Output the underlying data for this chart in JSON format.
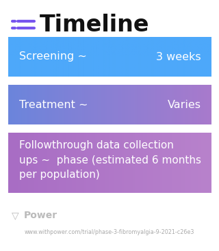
{
  "title": "Timeline",
  "title_fontsize": 24,
  "title_color": "#111111",
  "icon_color": "#7755EE",
  "background_color": "#ffffff",
  "boxes": [
    {
      "left_text": "Screening ~",
      "right_text": "3 weeks",
      "color_left": "#4DA8FA",
      "color_right": "#4DA8FA",
      "multiline": false,
      "fontsize": 11.5
    },
    {
      "left_text": "Treatment ~",
      "right_text": "Varies",
      "color_left": "#6B85DC",
      "color_right": "#A87ACC",
      "multiline": false,
      "fontsize": 11.5
    },
    {
      "left_text": "Followthrough data collection\nups ~  phase (estimated 6 months\nper population)",
      "right_text": "",
      "color_left": "#A86DC4",
      "color_right": "#B882CC",
      "multiline": true,
      "fontsize": 11
    }
  ],
  "footer_logo_text": "Power",
  "footer_url": "www.withpower.com/trial/phase-3-fibromyalgia-9-2021-c26e3",
  "footer_color": "#aaaaaa",
  "footer_fontsize": 5.8,
  "footer_logo_fontsize": 10
}
